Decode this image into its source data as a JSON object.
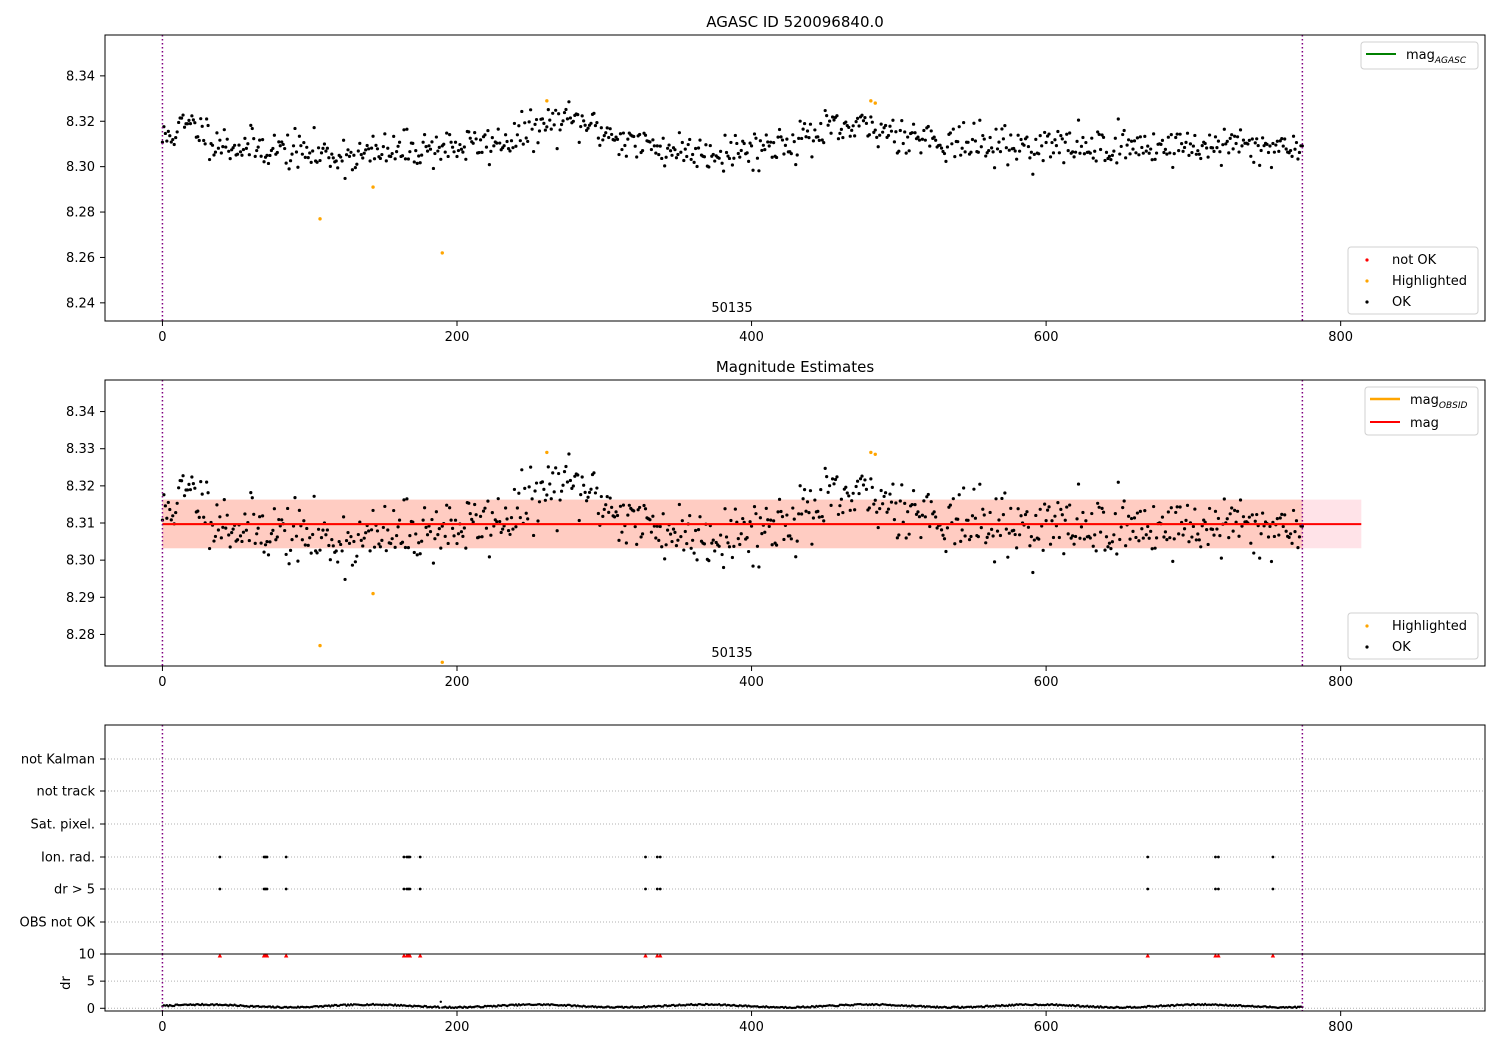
{
  "figure": {
    "type": "matplotlib-figure",
    "colors": {
      "ok": "#000000",
      "highlighted": "#ffa500",
      "not_ok": "#ff0000",
      "mag_line": "#ff0000",
      "mag_agasc_line": "#008000",
      "mag_obsid_line": "#ffa500",
      "band_pink": "#ffc0cb",
      "band_orange": "#ffa07a",
      "vline": "#800080",
      "grid": "#b0b0b0"
    }
  },
  "chart_data": [
    {
      "type": "scatter",
      "title": "AGASC ID 520096840.0",
      "annotation": "50135",
      "xlim": [
        -39,
        898
      ],
      "ylim": [
        8.232,
        8.358
      ],
      "xticks": [
        "0",
        "200",
        "400",
        "600",
        "800"
      ],
      "yticks": [
        "8.24",
        "8.26",
        "8.28",
        "8.30",
        "8.32",
        "8.34"
      ],
      "vlines": [
        0,
        774
      ],
      "legend_top": {
        "placement": "top-right",
        "entries": [
          {
            "label": "mag",
            "sub": "AGASC",
            "color": "#008000"
          }
        ]
      },
      "legend_bottom": {
        "placement": "lower-right",
        "entries": [
          {
            "label": "not OK",
            "color": "#ff0000"
          },
          {
            "label": "Highlighted",
            "color": "#ffa500"
          },
          {
            "label": "OK",
            "color": "#000000"
          }
        ]
      },
      "series": [
        {
          "name": "OK",
          "color": "#000000",
          "model": {
            "n": 775,
            "x_start": 0,
            "x_end": 774,
            "base": 8.309,
            "noise": 0.0055,
            "seed": 11,
            "bumps": [
              {
                "x": 18,
                "amp": 0.009,
                "w": 12
              },
              {
                "x": 275,
                "amp": 0.011,
                "w": 25
              },
              {
                "x": 470,
                "amp": 0.008,
                "w": 40
              },
              {
                "x": 125,
                "amp": -0.004,
                "w": 30
              },
              {
                "x": 390,
                "amp": -0.003,
                "w": 40
              }
            ]
          }
        },
        {
          "name": "Highlighted",
          "color": "#ffa500",
          "points": [
            [
              107,
              8.277
            ],
            [
              143,
              8.291
            ],
            [
              190,
              8.262
            ],
            [
              261,
              8.329
            ],
            [
              481,
              8.329
            ],
            [
              484,
              8.328
            ]
          ]
        }
      ]
    },
    {
      "type": "scatter",
      "title": "Magnitude Estimates",
      "annotation": "50135",
      "xlim": [
        -39,
        898
      ],
      "ylim": [
        8.2715,
        8.3485
      ],
      "xticks": [
        "0",
        "200",
        "400",
        "600",
        "800"
      ],
      "yticks": [
        "8.28",
        "8.29",
        "8.30",
        "8.31",
        "8.32",
        "8.33",
        "8.34"
      ],
      "vlines": [
        0,
        774
      ],
      "mag": 8.3097,
      "band_outer": {
        "x": [
          0,
          814
        ],
        "y": [
          8.3032,
          8.3163
        ]
      },
      "band_inner": {
        "x": [
          0,
          774
        ],
        "y": [
          8.3032,
          8.3163
        ]
      },
      "legend_top": {
        "placement": "top-right",
        "entries": [
          {
            "label": "mag",
            "sub": "OBSID",
            "color": "#ffa500"
          },
          {
            "label": "mag",
            "color": "#ff0000"
          }
        ]
      },
      "legend_bottom": {
        "placement": "lower-right",
        "entries": [
          {
            "label": "Highlighted",
            "color": "#ffa500"
          },
          {
            "label": "OK",
            "color": "#000000"
          }
        ]
      },
      "series": [
        {
          "name": "OK",
          "color": "#000000",
          "model_ref": 0
        },
        {
          "name": "Highlighted",
          "color": "#ffa500",
          "points": [
            [
              107,
              8.277
            ],
            [
              143,
              8.291
            ],
            [
              190,
              8.2725
            ],
            [
              261,
              8.329
            ],
            [
              481,
              8.329
            ],
            [
              484,
              8.3285
            ]
          ]
        }
      ]
    },
    {
      "type": "scatter",
      "title": "",
      "xlim": [
        -39,
        898
      ],
      "categories": [
        "not Kalman",
        "not track",
        "Sat. pixel.",
        "Ion. rad.",
        "dr > 5",
        "OBS not OK"
      ],
      "flag_x": [
        39,
        69,
        70,
        71,
        84,
        164,
        166,
        167,
        168,
        175,
        328,
        336,
        338,
        669,
        715,
        717,
        754
      ],
      "flag_rows": [
        "Ion. rad.",
        "dr > 5"
      ],
      "vlines": [
        0,
        774
      ]
    },
    {
      "type": "scatter",
      "title": "",
      "ylabel": "dr",
      "xlim": [
        -39,
        898
      ],
      "ylim": [
        -0.5,
        10
      ],
      "yticks": [
        "0",
        "5",
        "10"
      ],
      "xticks": [
        "0",
        "200",
        "400",
        "600",
        "800"
      ],
      "dr_base": 0.3,
      "dr_spike": [
        189,
        1.2
      ],
      "clip_markers_x": [
        39,
        69,
        70,
        71,
        84,
        164,
        166,
        167,
        168,
        175,
        328,
        336,
        338,
        669,
        715,
        717,
        754
      ],
      "vlines": [
        0,
        774
      ]
    }
  ]
}
